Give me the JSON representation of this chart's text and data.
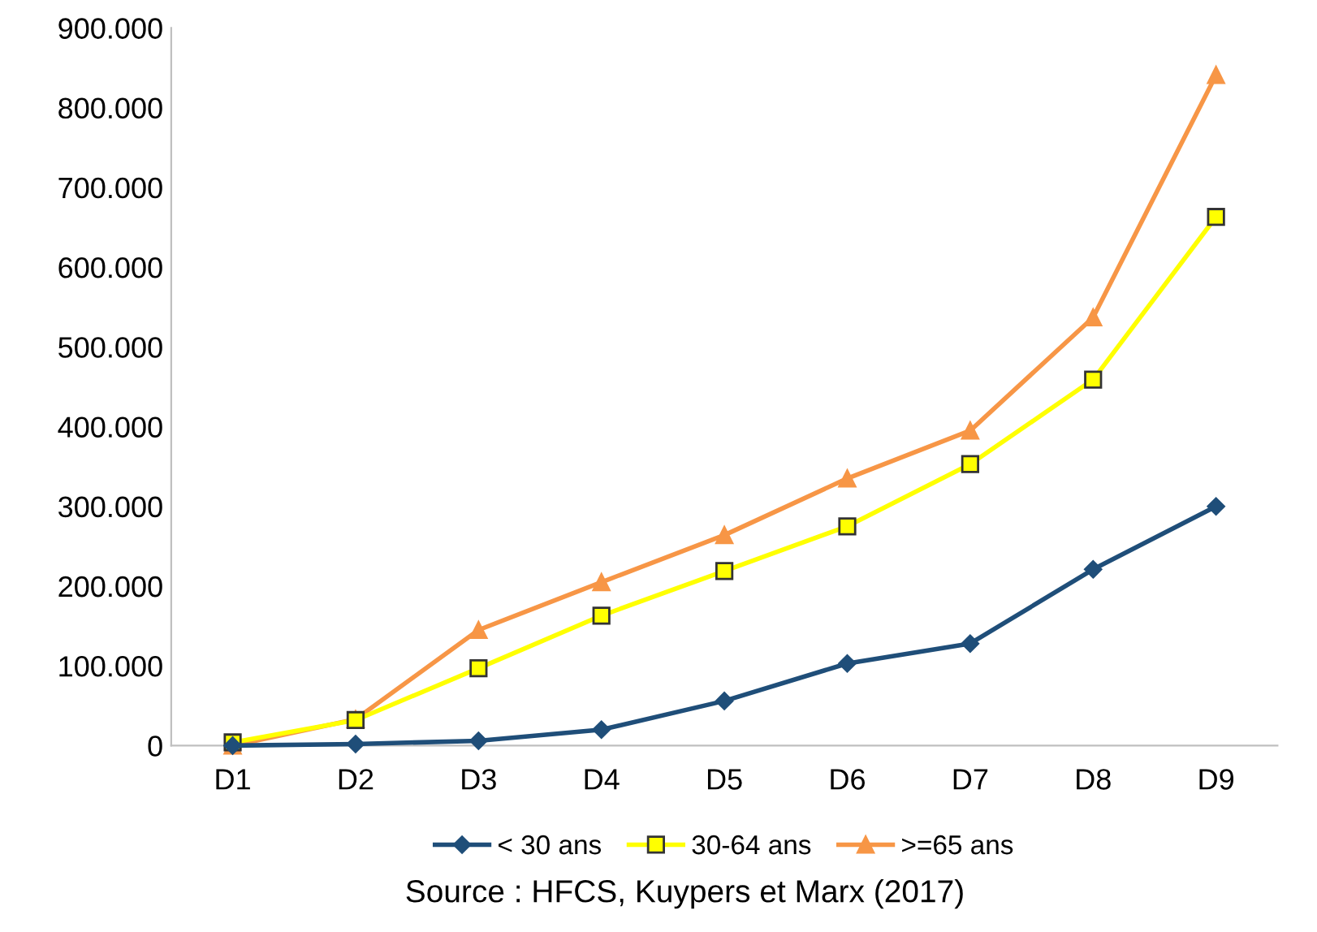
{
  "chart_data": {
    "type": "line",
    "categories": [
      "D1",
      "D2",
      "D3",
      "D4",
      "D5",
      "D6",
      "D7",
      "D8",
      "D9"
    ],
    "series": [
      {
        "name": "< 30 ans",
        "color": "#1f4e79",
        "marker": "diamond",
        "values": [
          0,
          2000,
          6000,
          20000,
          56000,
          103000,
          128000,
          221000,
          300000
        ]
      },
      {
        "name": "30-64 ans",
        "color": "#ffff00",
        "marker": "square",
        "values": [
          4000,
          32000,
          97000,
          163000,
          219000,
          275000,
          353000,
          459000,
          663000
        ]
      },
      {
        "name": ">=65 ans",
        "color": "#f79646",
        "marker": "triangle",
        "values": [
          0,
          33000,
          145000,
          205000,
          264000,
          335000,
          395000,
          537000,
          841000
        ]
      }
    ],
    "ylim": [
      0,
      900000
    ],
    "yticks": [
      {
        "value": 0,
        "label": "0"
      },
      {
        "value": 100000,
        "label": "100.000"
      },
      {
        "value": 200000,
        "label": "200.000"
      },
      {
        "value": 300000,
        "label": "300.000"
      },
      {
        "value": 400000,
        "label": "400.000"
      },
      {
        "value": 500000,
        "label": "500.000"
      },
      {
        "value": 600000,
        "label": "600.000"
      },
      {
        "value": 700000,
        "label": "700.000"
      },
      {
        "value": 800000,
        "label": "800.000"
      },
      {
        "value": 900000,
        "label": "900.000"
      }
    ],
    "grid": false,
    "legend": "bottom",
    "annotations": [
      "Source : HFCS, Kuypers et Marx (2017)"
    ]
  }
}
